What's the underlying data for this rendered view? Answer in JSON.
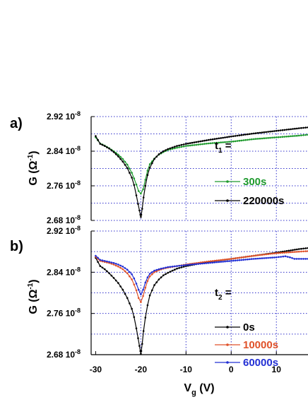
{
  "colors": {
    "black": "#000000",
    "green": "#1f9a2e",
    "red": "#e0522a",
    "blue": "#2330d4",
    "grid": "#3333cc"
  },
  "chart_data": [
    {
      "type": "line",
      "panel_label": "a)",
      "ylabel": "G (Ω-1)",
      "xlabel": "",
      "xlim": [
        -31,
        17
      ],
      "ylim": [
        2.68e-08,
        2.92e-08
      ],
      "y_ticks": [
        {
          "value": 2.68e-08,
          "mantissa": "2.68",
          "exp": "-8"
        },
        {
          "value": 2.76e-08,
          "mantissa": "2.76",
          "exp": "-8"
        },
        {
          "value": 2.84e-08,
          "mantissa": "2.84",
          "exp": "-8"
        },
        {
          "value": 2.92e-08,
          "mantissa": "2.92",
          "exp": "-8"
        }
      ],
      "x_ticks": [],
      "legend_title": "t1 =",
      "legend_title_main": "t",
      "legend_title_sub": "1",
      "legend_title_eq": " =",
      "legend_position": "right",
      "grid": true,
      "series": [
        {
          "name": "300s",
          "color": "#1f9a2e",
          "x": [
            -30,
            -29,
            -28,
            -27,
            -26,
            -25,
            -24,
            -23,
            -22,
            -21.5,
            -21,
            -20.5,
            -20,
            -19.5,
            -19,
            -18.5,
            -18,
            -17,
            -16,
            -15,
            -14,
            -12,
            -10,
            -5,
            0,
            5,
            10,
            15,
            17
          ],
          "y": [
            2.872e-08,
            2.858e-08,
            2.853e-08,
            2.847e-08,
            2.84e-08,
            2.832e-08,
            2.822e-08,
            2.809e-08,
            2.79e-08,
            2.777e-08,
            2.763e-08,
            2.748e-08,
            2.742e-08,
            2.752e-08,
            2.774e-08,
            2.795e-08,
            2.81e-08,
            2.823e-08,
            2.832e-08,
            2.838e-08,
            2.843e-08,
            2.848e-08,
            2.852e-08,
            2.858e-08,
            2.862e-08,
            2.868e-08,
            2.872e-08,
            2.876e-08,
            2.878e-08
          ]
        },
        {
          "name": "220000s",
          "color": "#000000",
          "x": [
            -30,
            -29,
            -28,
            -27,
            -26,
            -25,
            -24,
            -23,
            -22,
            -21.5,
            -21,
            -20.6,
            -20.3,
            -20.1,
            -20,
            -19.9,
            -19.7,
            -19.4,
            -19,
            -18.5,
            -18,
            -17,
            -16,
            -15,
            -14,
            -12,
            -10,
            -5,
            0,
            5,
            10,
            15,
            17
          ],
          "y": [
            2.875e-08,
            2.857e-08,
            2.852e-08,
            2.846e-08,
            2.838e-08,
            2.828e-08,
            2.816e-08,
            2.801e-08,
            2.779e-08,
            2.762e-08,
            2.738e-08,
            2.718e-08,
            2.703e-08,
            2.693e-08,
            2.688e-08,
            2.693e-08,
            2.707e-08,
            2.733e-08,
            2.76e-08,
            2.785e-08,
            2.802e-08,
            2.822e-08,
            2.833e-08,
            2.84e-08,
            2.845e-08,
            2.852e-08,
            2.857e-08,
            2.866e-08,
            2.874e-08,
            2.881e-08,
            2.887e-08,
            2.893e-08,
            2.895e-08
          ]
        }
      ]
    },
    {
      "type": "line",
      "panel_label": "b)",
      "ylabel": "G (Ω-1)",
      "xlabel": "Vg (V)",
      "xlabel_main": "V",
      "xlabel_sub": "g",
      "xlabel_rest": " (V)",
      "xlim": [
        -31,
        17
      ],
      "ylim": [
        2.68e-08,
        2.92e-08
      ],
      "y_ticks": [
        {
          "value": 2.68e-08,
          "mantissa": "2.68",
          "exp": "-8"
        },
        {
          "value": 2.76e-08,
          "mantissa": "2.76",
          "exp": "-8"
        },
        {
          "value": 2.84e-08,
          "mantissa": "2.84",
          "exp": "-8"
        },
        {
          "value": 2.92e-08,
          "mantissa": "2.92",
          "exp": "-8"
        }
      ],
      "x_ticks": [
        {
          "value": -30,
          "label": "-30"
        },
        {
          "value": -20,
          "label": "-20"
        },
        {
          "value": -10,
          "label": "-10"
        },
        {
          "value": 0,
          "label": "0"
        },
        {
          "value": 10,
          "label": "10"
        }
      ],
      "legend_title": "t2 =",
      "legend_title_main": "t",
      "legend_title_sub": "2",
      "legend_title_eq": " =",
      "legend_position": "right",
      "grid": true,
      "series": [
        {
          "name": "0s",
          "color": "#000000",
          "x": [
            -30,
            -29,
            -28,
            -27,
            -26,
            -25,
            -24,
            -23,
            -22,
            -21.5,
            -21,
            -20.6,
            -20.3,
            -20.1,
            -20,
            -19.9,
            -19.7,
            -19.4,
            -19,
            -18.5,
            -18,
            -17,
            -16,
            -15,
            -14,
            -12,
            -10,
            -5,
            0,
            5,
            10,
            15,
            17
          ],
          "y": [
            2.868e-08,
            2.852e-08,
            2.846e-08,
            2.838e-08,
            2.829e-08,
            2.819e-08,
            2.806e-08,
            2.79e-08,
            2.769e-08,
            2.753e-08,
            2.731e-08,
            2.712e-08,
            2.697e-08,
            2.687e-08,
            2.682e-08,
            2.687e-08,
            2.701e-08,
            2.726e-08,
            2.752e-08,
            2.776e-08,
            2.795e-08,
            2.815e-08,
            2.826e-08,
            2.834e-08,
            2.839e-08,
            2.847e-08,
            2.852e-08,
            2.86e-08,
            2.866e-08,
            2.872e-08,
            2.878e-08,
            2.885e-08,
            2.887e-08
          ]
        },
        {
          "name": "10000s",
          "color": "#e0522a",
          "x": [
            -30,
            -29,
            -28,
            -27,
            -26,
            -25,
            -24,
            -23,
            -22,
            -21.5,
            -21,
            -20.5,
            -20,
            -19.5,
            -19,
            -18.5,
            -18,
            -17,
            -16,
            -15,
            -14,
            -12,
            -10,
            -5,
            0,
            5,
            10,
            15,
            17
          ],
          "y": [
            2.87e-08,
            2.862e-08,
            2.86e-08,
            2.858e-08,
            2.855e-08,
            2.851e-08,
            2.846e-08,
            2.838e-08,
            2.826e-08,
            2.816e-08,
            2.805e-08,
            2.79e-08,
            2.782e-08,
            2.794e-08,
            2.81e-08,
            2.823e-08,
            2.832e-08,
            2.84e-08,
            2.844e-08,
            2.847e-08,
            2.849e-08,
            2.852e-08,
            2.855e-08,
            2.861e-08,
            2.866e-08,
            2.872e-08,
            2.877e-08,
            2.88e-08,
            2.881e-08
          ]
        },
        {
          "name": "60000s",
          "color": "#2330d4",
          "x": [
            -30,
            -29,
            -28,
            -27,
            -26,
            -25,
            -24,
            -23,
            -22,
            -21.5,
            -21,
            -20.5,
            -20,
            -19.5,
            -19,
            -18.5,
            -18,
            -17,
            -16,
            -15,
            -14,
            -12,
            -10,
            -5,
            0,
            5,
            10,
            12,
            13,
            14,
            15,
            16,
            17
          ],
          "y": [
            2.872e-08,
            2.864e-08,
            2.862e-08,
            2.86e-08,
            2.858e-08,
            2.855e-08,
            2.851e-08,
            2.845e-08,
            2.836e-08,
            2.828e-08,
            2.818e-08,
            2.806e-08,
            2.797e-08,
            2.806e-08,
            2.82e-08,
            2.83e-08,
            2.837e-08,
            2.843e-08,
            2.846e-08,
            2.848e-08,
            2.85e-08,
            2.852e-08,
            2.854e-08,
            2.858e-08,
            2.862e-08,
            2.866e-08,
            2.869e-08,
            2.871e-08,
            2.869e-08,
            2.866e-08,
            2.866e-08,
            2.866e-08,
            2.866e-08
          ]
        }
      ]
    }
  ]
}
